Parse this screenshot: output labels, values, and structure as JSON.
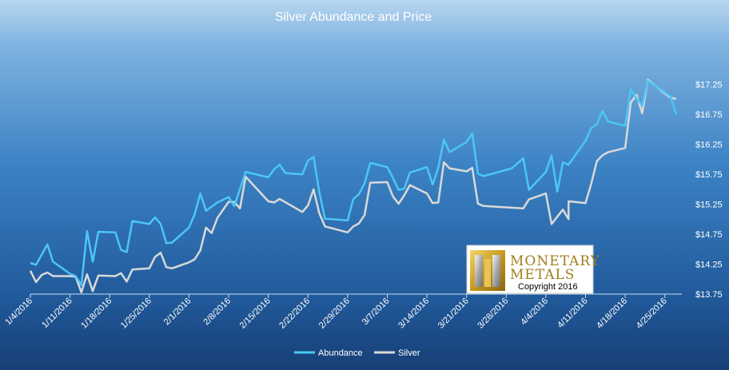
{
  "chart_data": {
    "type": "line",
    "title": "Silver Abundance and Price",
    "xlabel": "",
    "ylabel": "",
    "ylim": [
      13.75,
      17.5
    ],
    "y_ticks": [
      "$13.75",
      "$14.25",
      "$14.75",
      "$15.25",
      "$15.75",
      "$16.25",
      "$16.75",
      "$17.25"
    ],
    "y_tick_values": [
      13.75,
      14.25,
      14.75,
      15.25,
      15.75,
      16.25,
      16.75,
      17.25
    ],
    "x_ticks": [
      "1/4/2016",
      "1/11/2016",
      "1/18/2016",
      "1/25/2016",
      "2/1/2016",
      "2/8/2016",
      "2/15/2016",
      "2/22/2016",
      "2/29/2016",
      "3/7/2016",
      "3/14/2016",
      "3/21/2016",
      "3/28/2016",
      "4/4/2016",
      "4/11/2016",
      "4/18/2016",
      "4/25/2016"
    ],
    "grid": false,
    "legend_position": "bottom",
    "series": [
      {
        "name": "Abundance",
        "color": "#4cc6f6",
        "points": [
          [
            "1/4/2016",
            14.27
          ],
          [
            "1/5/2016",
            14.24
          ],
          [
            "1/7/2016",
            14.58
          ],
          [
            "1/8/2016",
            14.29
          ],
          [
            "1/11/2016",
            14.09
          ],
          [
            "1/12/2016",
            14.05
          ],
          [
            "1/13/2016",
            13.9
          ],
          [
            "1/14/2016",
            14.8
          ],
          [
            "1/15/2016",
            14.29
          ],
          [
            "1/16/2016",
            14.79
          ],
          [
            "1/19/2016",
            14.78
          ],
          [
            "1/20/2016",
            14.49
          ],
          [
            "1/21/2016",
            14.45
          ],
          [
            "1/22/2016",
            14.97
          ],
          [
            "1/25/2016",
            14.92
          ],
          [
            "1/26/2016",
            15.03
          ],
          [
            "1/27/2016",
            14.92
          ],
          [
            "1/28/2016",
            14.6
          ],
          [
            "1/29/2016",
            14.61
          ],
          [
            "2/1/2016",
            14.86
          ],
          [
            "2/2/2016",
            15.08
          ],
          [
            "2/3/2016",
            15.43
          ],
          [
            "2/4/2016",
            15.14
          ],
          [
            "2/6/2016",
            15.28
          ],
          [
            "2/8/2016",
            15.37
          ],
          [
            "2/9/2016",
            15.22
          ],
          [
            "2/11/2016",
            15.79
          ],
          [
            "2/15/2016",
            15.7
          ],
          [
            "2/16/2016",
            15.83
          ],
          [
            "2/17/2016",
            15.91
          ],
          [
            "2/18/2016",
            15.77
          ],
          [
            "2/21/2016",
            15.75
          ],
          [
            "2/22/2016",
            15.98
          ],
          [
            "2/23/2016",
            16.04
          ],
          [
            "2/24/2016",
            15.46
          ],
          [
            "2/25/2016",
            15.01
          ],
          [
            "2/29/2016",
            14.98
          ],
          [
            "3/1/2016",
            15.34
          ],
          [
            "3/2/2016",
            15.42
          ],
          [
            "3/3/2016",
            15.6
          ],
          [
            "3/4/2016",
            15.94
          ],
          [
            "3/7/2016",
            15.87
          ],
          [
            "3/8/2016",
            15.69
          ],
          [
            "3/9/2016",
            15.49
          ],
          [
            "3/10/2016",
            15.51
          ],
          [
            "3/11/2016",
            15.78
          ],
          [
            "3/14/2016",
            15.87
          ],
          [
            "3/15/2016",
            15.58
          ],
          [
            "3/16/2016",
            15.86
          ],
          [
            "3/17/2016",
            16.33
          ],
          [
            "3/18/2016",
            16.12
          ],
          [
            "3/21/2016",
            16.29
          ],
          [
            "3/22/2016",
            16.43
          ],
          [
            "3/23/2016",
            15.76
          ],
          [
            "3/24/2016",
            15.72
          ],
          [
            "3/29/2016",
            15.85
          ],
          [
            "3/31/2016",
            16.02
          ],
          [
            "4/1/2016",
            15.49
          ],
          [
            "4/4/2016",
            15.79
          ],
          [
            "4/5/2016",
            16.07
          ],
          [
            "4/6/2016",
            15.46
          ],
          [
            "4/7/2016",
            15.95
          ],
          [
            "4/8/2016",
            15.91
          ],
          [
            "4/11/2016",
            16.31
          ],
          [
            "4/12/2016",
            16.52
          ],
          [
            "4/13/2016",
            16.59
          ],
          [
            "4/14/2016",
            16.81
          ],
          [
            "4/15/2016",
            16.63
          ],
          [
            "4/18/2016",
            16.56
          ],
          [
            "4/19/2016",
            17.17
          ],
          [
            "4/20/2016",
            17.02
          ],
          [
            "4/21/2016",
            16.9
          ],
          [
            "4/22/2016",
            17.31
          ],
          [
            "4/25/2016",
            17.12
          ],
          [
            "4/26/2016",
            17.05
          ],
          [
            "4/27/2016",
            16.75
          ]
        ]
      },
      {
        "name": "Silver",
        "color": "#d9d9d9",
        "points": [
          [
            "1/4/2016",
            14.14
          ],
          [
            "1/5/2016",
            13.95
          ],
          [
            "1/6/2016",
            14.07
          ],
          [
            "1/7/2016",
            14.11
          ],
          [
            "1/8/2016",
            14.05
          ],
          [
            "1/11/2016",
            14.05
          ],
          [
            "1/12/2016",
            14.04
          ],
          [
            "1/13/2016",
            13.78
          ],
          [
            "1/14/2016",
            14.08
          ],
          [
            "1/15/2016",
            13.8
          ],
          [
            "1/16/2016",
            14.06
          ],
          [
            "1/19/2016",
            14.05
          ],
          [
            "1/20/2016",
            14.1
          ],
          [
            "1/21/2016",
            13.96
          ],
          [
            "1/22/2016",
            14.16
          ],
          [
            "1/25/2016",
            14.18
          ],
          [
            "1/26/2016",
            14.37
          ],
          [
            "1/27/2016",
            14.44
          ],
          [
            "1/28/2016",
            14.2
          ],
          [
            "1/29/2016",
            14.18
          ],
          [
            "2/1/2016",
            14.28
          ],
          [
            "2/2/2016",
            14.33
          ],
          [
            "2/3/2016",
            14.48
          ],
          [
            "2/4/2016",
            14.86
          ],
          [
            "2/5/2016",
            14.77
          ],
          [
            "2/6/2016",
            15.02
          ],
          [
            "2/8/2016",
            15.29
          ],
          [
            "2/9/2016",
            15.29
          ],
          [
            "2/10/2016",
            15.18
          ],
          [
            "2/11/2016",
            15.71
          ],
          [
            "2/15/2016",
            15.3
          ],
          [
            "2/16/2016",
            15.28
          ],
          [
            "2/17/2016",
            15.34
          ],
          [
            "2/21/2016",
            15.12
          ],
          [
            "2/22/2016",
            15.23
          ],
          [
            "2/23/2016",
            15.5
          ],
          [
            "2/24/2016",
            15.1
          ],
          [
            "2/25/2016",
            14.88
          ],
          [
            "2/29/2016",
            14.78
          ],
          [
            "3/1/2016",
            14.88
          ],
          [
            "3/2/2016",
            14.93
          ],
          [
            "3/3/2016",
            15.07
          ],
          [
            "3/4/2016",
            15.61
          ],
          [
            "3/7/2016",
            15.62
          ],
          [
            "3/8/2016",
            15.38
          ],
          [
            "3/9/2016",
            15.26
          ],
          [
            "3/10/2016",
            15.4
          ],
          [
            "3/11/2016",
            15.57
          ],
          [
            "3/14/2016",
            15.43
          ],
          [
            "3/15/2016",
            15.27
          ],
          [
            "3/16/2016",
            15.28
          ],
          [
            "3/17/2016",
            15.95
          ],
          [
            "3/18/2016",
            15.85
          ],
          [
            "3/21/2016",
            15.8
          ],
          [
            "3/22/2016",
            15.86
          ],
          [
            "3/23/2016",
            15.26
          ],
          [
            "3/24/2016",
            15.22
          ],
          [
            "3/31/2016",
            15.18
          ],
          [
            "4/1/2016",
            15.33
          ],
          [
            "4/4/2016",
            15.43
          ],
          [
            "4/5/2016",
            14.92
          ],
          [
            "4/6/2016",
            15.04
          ],
          [
            "4/7/2016",
            15.16
          ],
          [
            "4/8/2016",
            15.0
          ],
          [
            "4/8/2016",
            15.3
          ],
          [
            "4/11/2016",
            15.27
          ],
          [
            "4/12/2016",
            15.59
          ],
          [
            "4/13/2016",
            15.97
          ],
          [
            "4/14/2016",
            16.07
          ],
          [
            "4/15/2016",
            16.12
          ],
          [
            "4/18/2016",
            16.19
          ],
          [
            "4/19/2016",
            16.95
          ],
          [
            "4/20/2016",
            17.08
          ],
          [
            "4/21/2016",
            16.77
          ],
          [
            "4/22/2016",
            17.33
          ],
          [
            "4/25/2016",
            17.1
          ],
          [
            "4/26/2016",
            17.03
          ],
          [
            "4/27/2016",
            17.01
          ]
        ]
      }
    ]
  },
  "logo": {
    "line1": "MONETARY",
    "line2": "METALS",
    "copyright": "Copyright 2016"
  },
  "colors": {
    "background_top": "#b3d4ee",
    "background_mid": "#3f87c8",
    "background_bottom": "#16407c",
    "logo_gold": "#c9a228"
  }
}
